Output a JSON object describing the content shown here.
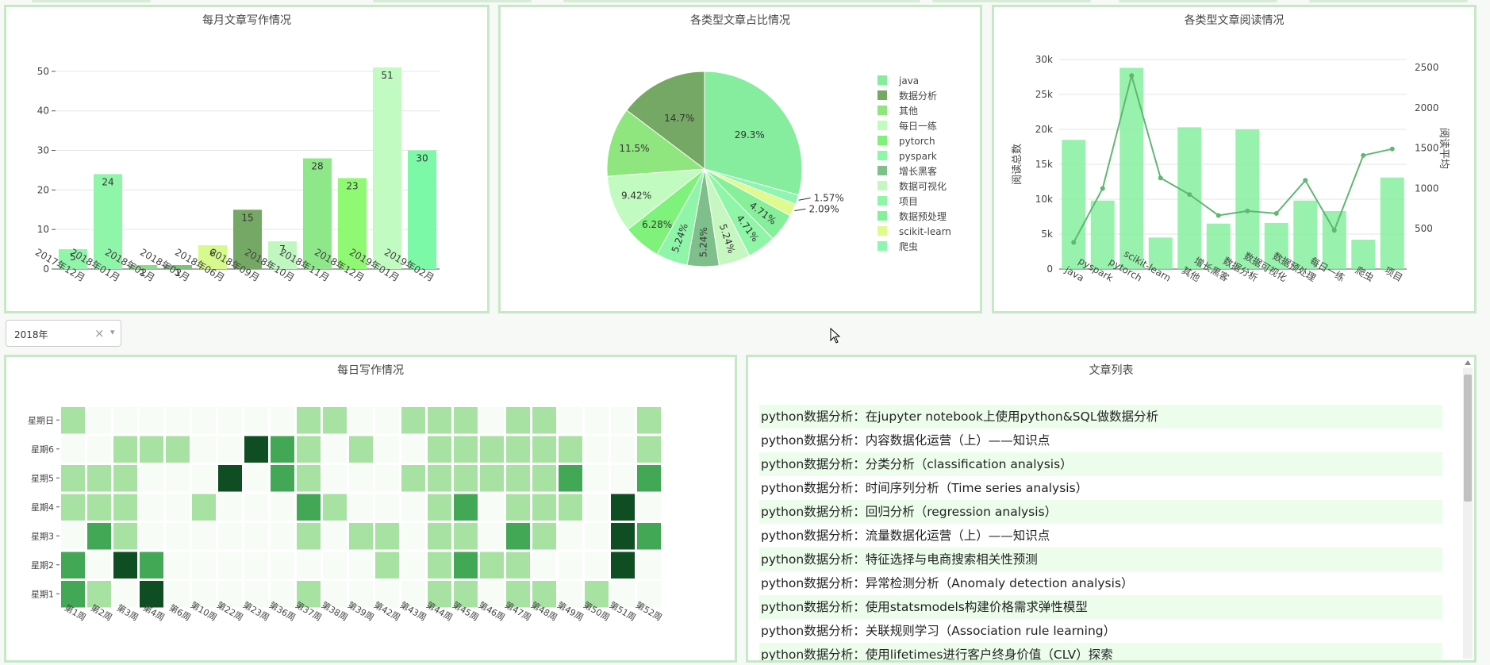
{
  "colors": {
    "border": "#c6e8c6",
    "heat_levels": [
      "#f7fcf7",
      "#a8e2a3",
      "#43a856",
      "#0f4d22"
    ]
  },
  "icons": {
    "clear": "clear-icon",
    "dropdown": "chevron-down-icon",
    "cursor": "mouse-pointer-icon"
  },
  "monthly": {
    "title": "每月文章写作情况",
    "chart_data": {
      "type": "bar",
      "categories": [
        "2017年12月",
        "2018年01月",
        "2018年02月",
        "2018年03月",
        "2018年06月",
        "2018年09月",
        "2018年10月",
        "2018年11月",
        "2018年12月",
        "2019年01月",
        "2019年02月"
      ],
      "values": [
        5,
        24,
        1,
        1,
        6,
        15,
        7,
        28,
        23,
        51,
        30
      ],
      "colors": [
        "#8ff5a8",
        "#8ff5a8",
        "#8fd88f",
        "#7fbf7f",
        "#d6fa8c",
        "#76a865",
        "#c0f7c0",
        "#8ee88a",
        "#90f974",
        "#c1fbc1",
        "#7cf9a6"
      ],
      "ylim": [
        0,
        55
      ],
      "yticks": [
        0,
        10,
        20,
        30,
        40,
        50
      ],
      "grid": true
    }
  },
  "pie": {
    "title": "各类型文章占比情况",
    "chart_data": {
      "type": "pie",
      "labels": [
        "java",
        "数据分析",
        "其他",
        "每日一练",
        "pytorch",
        "pyspark",
        "增长黑客",
        "数据可视化",
        "项目",
        "数据预处理",
        "scikit-learn",
        "爬虫"
      ],
      "values": [
        29.3,
        14.7,
        11.5,
        9.42,
        6.28,
        5.24,
        5.24,
        5.24,
        4.71,
        4.71,
        2.09,
        1.57
      ],
      "colors": [
        "#86ec9e",
        "#75a865",
        "#8fe57e",
        "#c1fbbf",
        "#7ef27a",
        "#8ff5a8",
        "#7fbf8c",
        "#c6f7c0",
        "#8ef6a6",
        "#85ef9a",
        "#dffb8e",
        "#8ff5b0"
      ],
      "display_order": [
        0,
        11,
        10,
        9,
        8,
        7,
        6,
        5,
        4,
        3,
        2,
        1
      ],
      "legend_position": "right"
    }
  },
  "reads": {
    "title": "各类型文章阅读情况",
    "chart_data": {
      "type": "bar",
      "categories": [
        "java",
        "pyspark",
        "pytorch",
        "scikit-learn",
        "其他",
        "增长黑客",
        "数据分析",
        "数据可视化",
        "数据预处理",
        "每日一练",
        "爬虫",
        "项目"
      ],
      "series": [
        {
          "name": "阅读总数",
          "values": [
            18500,
            9800,
            28800,
            4500,
            20300,
            6500,
            20000,
            6600,
            9800,
            8300,
            4200,
            13100
          ]
        },
        {
          "name": "阅读平均",
          "values": [
            330,
            1000,
            2400,
            1130,
            925,
            665,
            720,
            690,
            1100,
            480,
            1410,
            1490
          ]
        }
      ],
      "ylabel": "阅读总数",
      "y2label": "阅读平均",
      "ylim": [
        0,
        30000
      ],
      "yticks": [
        "0",
        "5k",
        "10k",
        "15k",
        "20k",
        "25k",
        "30k"
      ],
      "y2lim": [
        0,
        2600
      ],
      "y2ticks": [
        500,
        1000,
        1500,
        2000,
        2500
      ]
    }
  },
  "year_select": {
    "value": "2018年",
    "clear": "×",
    "chevron": "▾"
  },
  "heatmap": {
    "title": "每日写作情况",
    "chart_data": {
      "type": "heatmap",
      "x": [
        "第1周",
        "第2周",
        "第3周",
        "第4周",
        "第6周",
        "第10周",
        "第22周",
        "第23周",
        "第36周",
        "第37周",
        "第38周",
        "第39周",
        "第42周",
        "第43周",
        "第44周",
        "第45周",
        "第46周",
        "第47周",
        "第48周",
        "第49周",
        "第50周",
        "第51周",
        "第52周"
      ],
      "y": [
        "星期日",
        "星期6",
        "星期5",
        "星期4",
        "星期3",
        "星期2",
        "星期1"
      ],
      "levels": [
        [
          1,
          0,
          0,
          0,
          0,
          0,
          0,
          0,
          0,
          1,
          1,
          0,
          0,
          1,
          1,
          1,
          0,
          1,
          1,
          0,
          0,
          0,
          1
        ],
        [
          0,
          0,
          1,
          1,
          1,
          0,
          0,
          3,
          2,
          1,
          0,
          1,
          0,
          0,
          1,
          1,
          1,
          1,
          1,
          1,
          0,
          0,
          1
        ],
        [
          1,
          1,
          1,
          0,
          0,
          0,
          3,
          0,
          2,
          1,
          0,
          0,
          0,
          1,
          1,
          1,
          1,
          1,
          1,
          2,
          0,
          0,
          2
        ],
        [
          1,
          1,
          1,
          0,
          0,
          1,
          0,
          0,
          0,
          2,
          1,
          0,
          0,
          0,
          1,
          2,
          0,
          1,
          1,
          1,
          0,
          3,
          0
        ],
        [
          0,
          2,
          1,
          0,
          0,
          0,
          0,
          0,
          0,
          1,
          0,
          1,
          1,
          0,
          1,
          1,
          0,
          2,
          1,
          0,
          0,
          3,
          2
        ],
        [
          2,
          0,
          3,
          2,
          0,
          0,
          0,
          0,
          0,
          0,
          0,
          0,
          1,
          0,
          1,
          2,
          1,
          1,
          0,
          0,
          0,
          3,
          0
        ],
        [
          2,
          1,
          0,
          3,
          0,
          0,
          0,
          0,
          0,
          1,
          0,
          0,
          0,
          0,
          1,
          1,
          0,
          1,
          1,
          0,
          1,
          0,
          0
        ]
      ]
    }
  },
  "articles": {
    "title": "文章列表",
    "items": [
      "python数据分析：在jupyter notebook上使用python&SQL做数据分析",
      "python数据分析：内容数据化运营（上）——知识点",
      "python数据分析：分类分析（classification analysis）",
      "python数据分析：时间序列分析（Time series analysis）",
      "python数据分析：回归分析（regression analysis）",
      "python数据分析：流量数据化运营（上）——知识点",
      "python数据分析：特征选择与电商搜索相关性预测",
      "python数据分析：异常检测分析（Anomaly detection analysis）",
      "python数据分析：使用statsmodels构建价格需求弹性模型",
      "python数据分析：关联规则学习（Association rule learning）",
      "python数据分析：使用lifetimes进行客户终身价值（CLV）探索"
    ]
  }
}
